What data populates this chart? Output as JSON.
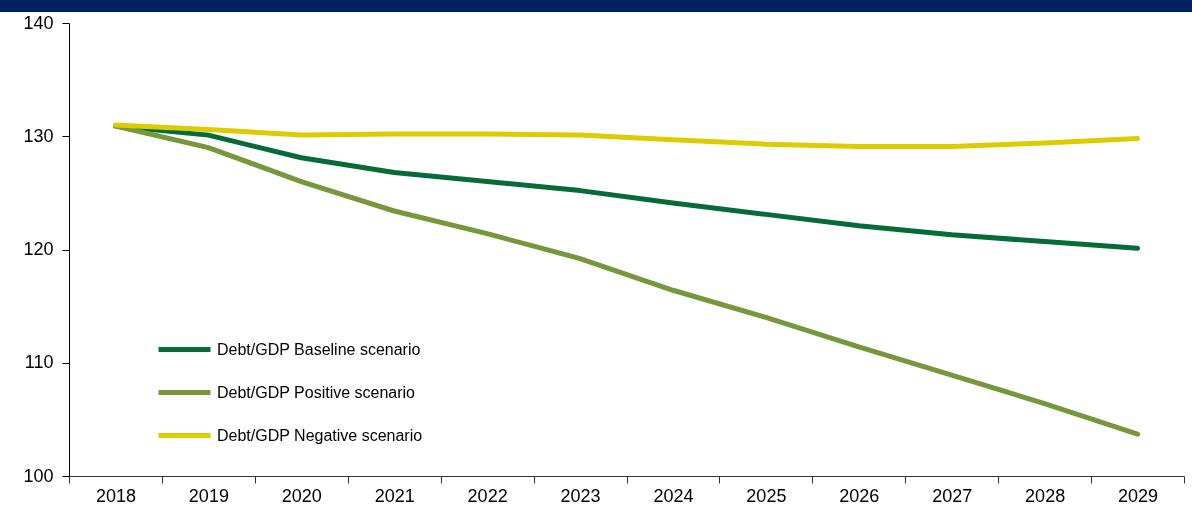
{
  "chart_data": {
    "type": "line",
    "categories": [
      "2018",
      "2019",
      "2020",
      "2021",
      "2022",
      "2023",
      "2024",
      "2025",
      "2026",
      "2027",
      "2028",
      "2029"
    ],
    "series": [
      {
        "name": "Debt/GDP Baseline scenario",
        "color": "#066b37",
        "values": [
          130.9,
          130.1,
          128.1,
          126.8,
          126.0,
          125.2,
          124.1,
          123.1,
          122.1,
          121.3,
          120.7,
          120.1
        ]
      },
      {
        "name": "Debt/GDP Positive scenario",
        "color": "#76983a",
        "values": [
          130.9,
          129.0,
          126.0,
          123.4,
          121.4,
          119.2,
          116.4,
          114.0,
          111.4,
          108.9,
          106.4,
          103.7
        ]
      },
      {
        "name": "Debt/GDP Negative scenario",
        "color": "#dccc00",
        "values": [
          131.0,
          130.6,
          130.1,
          130.2,
          130.2,
          130.1,
          129.7,
          129.3,
          129.1,
          129.1,
          129.4,
          129.8
        ]
      }
    ],
    "ylim": [
      100,
      140
    ],
    "yticks": [
      100,
      110,
      120,
      130,
      140
    ],
    "grid": false,
    "legend": "bottom left",
    "line_style": "solid"
  }
}
